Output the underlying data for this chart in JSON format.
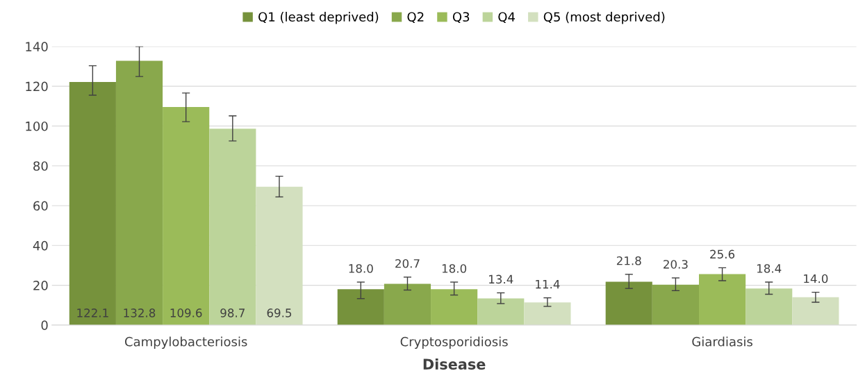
{
  "chart_data": {
    "type": "bar",
    "xlabel": "Disease",
    "categories": [
      "Campylobacteriosis",
      "Cryptosporidiosis",
      "Giardiasis"
    ],
    "series": [
      {
        "name": "Q1 (least deprived)",
        "color": "#76923c",
        "values": [
          122.1,
          18.0,
          21.8
        ],
        "value_labels": [
          "122.1",
          "18.0",
          "21.8"
        ],
        "errors": [
          [
            115.5,
            130.3
          ],
          [
            13.3,
            21.6
          ],
          [
            18.4,
            25.5
          ]
        ]
      },
      {
        "name": "Q2",
        "color": "#89a84c",
        "values": [
          132.8,
          20.7,
          20.3
        ],
        "value_labels": [
          "132.8",
          "20.7",
          "20.3"
        ],
        "errors": [
          [
            124.9,
            140
          ],
          [
            17.6,
            24.1
          ],
          [
            17.3,
            23.7
          ]
        ]
      },
      {
        "name": "Q3",
        "color": "#9bbb59",
        "values": [
          109.6,
          18.0,
          25.6
        ],
        "value_labels": [
          "109.6",
          "18.0",
          "25.6"
        ],
        "errors": [
          [
            102.2,
            116.6
          ],
          [
            15.1,
            21.6
          ],
          [
            22.3,
            28.8
          ]
        ]
      },
      {
        "name": "Q4",
        "color": "#bcd49a",
        "values": [
          98.7,
          13.4,
          18.4
        ],
        "value_labels": [
          "98.7",
          "13.4",
          "18.4"
        ],
        "errors": [
          [
            92.5,
            105.1
          ],
          [
            10.8,
            16.2
          ],
          [
            15.5,
            21.6
          ]
        ]
      },
      {
        "name": "Q5 (most deprived)",
        "color": "#d3e0bf",
        "values": [
          69.5,
          11.4,
          14.0
        ],
        "value_labels": [
          "69.5",
          "11.4",
          "14.0"
        ],
        "errors": [
          [
            64.4,
            74.8
          ],
          [
            9.4,
            13.7
          ],
          [
            11.5,
            16.5
          ]
        ]
      }
    ],
    "ylim": [
      0,
      140
    ],
    "yticks": [
      0,
      20,
      40,
      60,
      80,
      100,
      120,
      140
    ],
    "grid": "y",
    "legend": "top"
  }
}
